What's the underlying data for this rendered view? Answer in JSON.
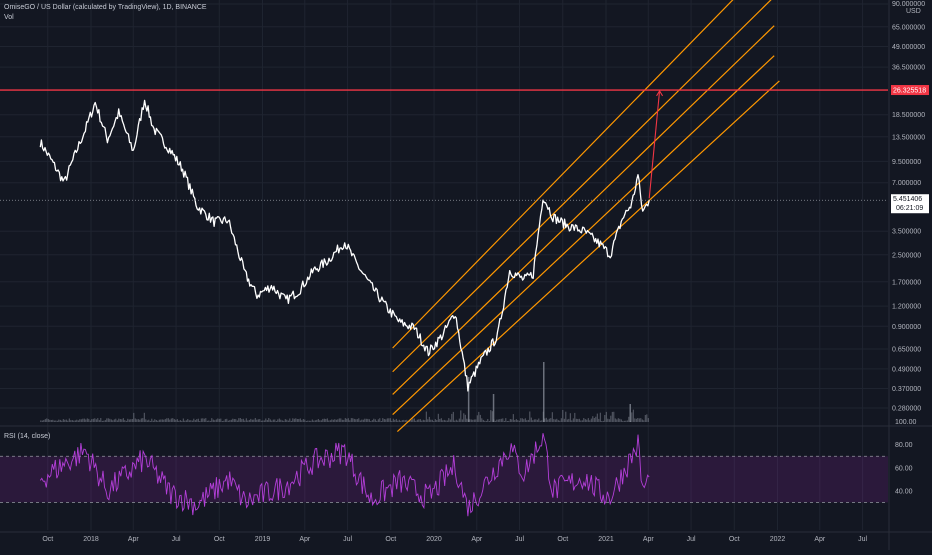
{
  "header": {
    "title": "OmiseGO / US Dollar (calculated by TradingView), 1D, BINANCE",
    "volume_label": "Vol"
  },
  "chart_data": [
    {
      "type": "line",
      "title": "OmiseGO / US Dollar (calculated by TradingView), 1D, BINANCE",
      "axis_currency": "USD",
      "y_scale": "log",
      "y_ticks": [
        "90.000000",
        "65.000000",
        "49.000000",
        "36.500000",
        "26.325518",
        "18.500000",
        "13.500000",
        "9.500000",
        "7.000000",
        "5.451406",
        "3.500000",
        "2.500000",
        "1.700000",
        "1.200000",
        "0.900000",
        "0.650000",
        "0.490000",
        "0.370000",
        "0.280000"
      ],
      "x_ticks": [
        "Oct",
        "2018",
        "Apr",
        "Jul",
        "Oct",
        "2019",
        "Apr",
        "Jul",
        "Oct",
        "2020",
        "Apr",
        "Jul",
        "Oct",
        "2021",
        "Apr",
        "Jul",
        "Oct",
        "2022",
        "Apr",
        "Jul"
      ],
      "price_keypoints": [
        {
          "x": "2017-09-15",
          "y": 12.5
        },
        {
          "x": "2017-10-10",
          "y": 9.5
        },
        {
          "x": "2017-11-05",
          "y": 7.0
        },
        {
          "x": "2017-12-01",
          "y": 11.0
        },
        {
          "x": "2017-12-20",
          "y": 15.0
        },
        {
          "x": "2018-01-10",
          "y": 22.0
        },
        {
          "x": "2018-02-05",
          "y": 13.0
        },
        {
          "x": "2018-03-01",
          "y": 19.0
        },
        {
          "x": "2018-04-01",
          "y": 11.0
        },
        {
          "x": "2018-04-25",
          "y": 23.0
        },
        {
          "x": "2018-05-15",
          "y": 15.0
        },
        {
          "x": "2018-06-20",
          "y": 11.0
        },
        {
          "x": "2018-07-15",
          "y": 8.5
        },
        {
          "x": "2018-08-15",
          "y": 5.0
        },
        {
          "x": "2018-09-20",
          "y": 4.0
        },
        {
          "x": "2018-10-20",
          "y": 4.1
        },
        {
          "x": "2018-11-25",
          "y": 1.9
        },
        {
          "x": "2018-12-20",
          "y": 1.4
        },
        {
          "x": "2019-01-20",
          "y": 1.6
        },
        {
          "x": "2019-02-20",
          "y": 1.3
        },
        {
          "x": "2019-03-20",
          "y": 1.5
        },
        {
          "x": "2019-04-20",
          "y": 2.0
        },
        {
          "x": "2019-05-20",
          "y": 2.3
        },
        {
          "x": "2019-06-25",
          "y": 3.0
        },
        {
          "x": "2019-07-20",
          "y": 2.2
        },
        {
          "x": "2019-08-20",
          "y": 1.6
        },
        {
          "x": "2019-09-25",
          "y": 1.15
        },
        {
          "x": "2019-10-20",
          "y": 0.95
        },
        {
          "x": "2019-11-20",
          "y": 0.88
        },
        {
          "x": "2019-12-20",
          "y": 0.62
        },
        {
          "x": "2020-01-20",
          "y": 0.8
        },
        {
          "x": "2020-02-15",
          "y": 1.1
        },
        {
          "x": "2020-03-13",
          "y": 0.38
        },
        {
          "x": "2020-04-10",
          "y": 0.55
        },
        {
          "x": "2020-05-15",
          "y": 0.78
        },
        {
          "x": "2020-06-10",
          "y": 2.0
        },
        {
          "x": "2020-07-10",
          "y": 1.75
        },
        {
          "x": "2020-07-30",
          "y": 1.9
        },
        {
          "x": "2020-08-20",
          "y": 5.8
        },
        {
          "x": "2020-09-10",
          "y": 4.3
        },
        {
          "x": "2020-10-10",
          "y": 3.8
        },
        {
          "x": "2020-11-15",
          "y": 3.5
        },
        {
          "x": "2020-12-20",
          "y": 2.9
        },
        {
          "x": "2021-01-10",
          "y": 2.5
        },
        {
          "x": "2021-02-05",
          "y": 4.2
        },
        {
          "x": "2021-02-25",
          "y": 5.2
        },
        {
          "x": "2021-03-10",
          "y": 7.8
        },
        {
          "x": "2021-03-20",
          "y": 4.6
        },
        {
          "x": "2021-04-03",
          "y": 5.45
        }
      ],
      "horizontal_level": {
        "y": 26.325518,
        "color": "#f23645"
      },
      "last_price": {
        "value": "5.451406",
        "countdown": "06:21:09"
      },
      "channel": {
        "color": "#ff9800",
        "lines": [
          {
            "start": {
              "x": "2019-10-05",
              "y": 0.66
            },
            "end": {
              "x": "2021-12-25",
              "y": 175
            }
          },
          {
            "start": {
              "x": "2019-10-05",
              "y": 0.47
            },
            "end": {
              "x": "2021-12-25",
              "y": 100
            }
          },
          {
            "start": {
              "x": "2019-10-05",
              "y": 0.34
            },
            "end": {
              "x": "2021-12-25",
              "y": 66
            }
          },
          {
            "start": {
              "x": "2019-10-05",
              "y": 0.255
            },
            "end": {
              "x": "2021-12-25",
              "y": 43
            }
          },
          {
            "start": {
              "x": "2019-10-15",
              "y": 0.2
            },
            "end": {
              "x": "2022-01-05",
              "y": 30
            }
          }
        ]
      },
      "projection_arrow": {
        "color": "#f23645",
        "from": {
          "x": "2021-04-03",
          "y": 5.6
        },
        "to": {
          "x": "2021-04-25",
          "y": 26
        }
      }
    },
    {
      "type": "line",
      "title": "RSI (14, close)",
      "y_ticks": [
        "100.00",
        "80.00",
        "60.00",
        "40.00"
      ],
      "bands": {
        "upper": 70,
        "lower": 30,
        "fill": "#9c27b0"
      },
      "line_color": "#b43fd9",
      "rsi_keypoints": [
        {
          "x": "2017-09-15",
          "y": 50
        },
        {
          "x": "2017-12-20",
          "y": 75
        },
        {
          "x": "2018-02-05",
          "y": 40
        },
        {
          "x": "2018-04-25",
          "y": 68
        },
        {
          "x": "2018-06-20",
          "y": 38
        },
        {
          "x": "2018-08-15",
          "y": 28
        },
        {
          "x": "2018-10-20",
          "y": 50
        },
        {
          "x": "2018-11-25",
          "y": 30
        },
        {
          "x": "2019-02-20",
          "y": 45
        },
        {
          "x": "2019-04-20",
          "y": 65
        },
        {
          "x": "2019-06-25",
          "y": 75
        },
        {
          "x": "2019-08-20",
          "y": 32
        },
        {
          "x": "2019-10-20",
          "y": 48
        },
        {
          "x": "2019-12-20",
          "y": 34
        },
        {
          "x": "2020-02-15",
          "y": 62
        },
        {
          "x": "2020-03-13",
          "y": 24
        },
        {
          "x": "2020-06-10",
          "y": 78
        },
        {
          "x": "2020-07-10",
          "y": 55
        },
        {
          "x": "2020-08-20",
          "y": 88
        },
        {
          "x": "2020-09-10",
          "y": 40
        },
        {
          "x": "2020-11-15",
          "y": 52
        },
        {
          "x": "2020-12-20",
          "y": 38
        },
        {
          "x": "2021-01-10",
          "y": 35
        },
        {
          "x": "2021-02-25",
          "y": 70
        },
        {
          "x": "2021-03-10",
          "y": 80
        },
        {
          "x": "2021-03-20",
          "y": 40
        },
        {
          "x": "2021-04-03",
          "y": 52
        }
      ]
    }
  ],
  "colors": {
    "background": "#131722",
    "price_line": "#ffffff",
    "grid": "#1f2430",
    "volume": "#8a8f9b",
    "axis_text": "#b2b5be"
  }
}
